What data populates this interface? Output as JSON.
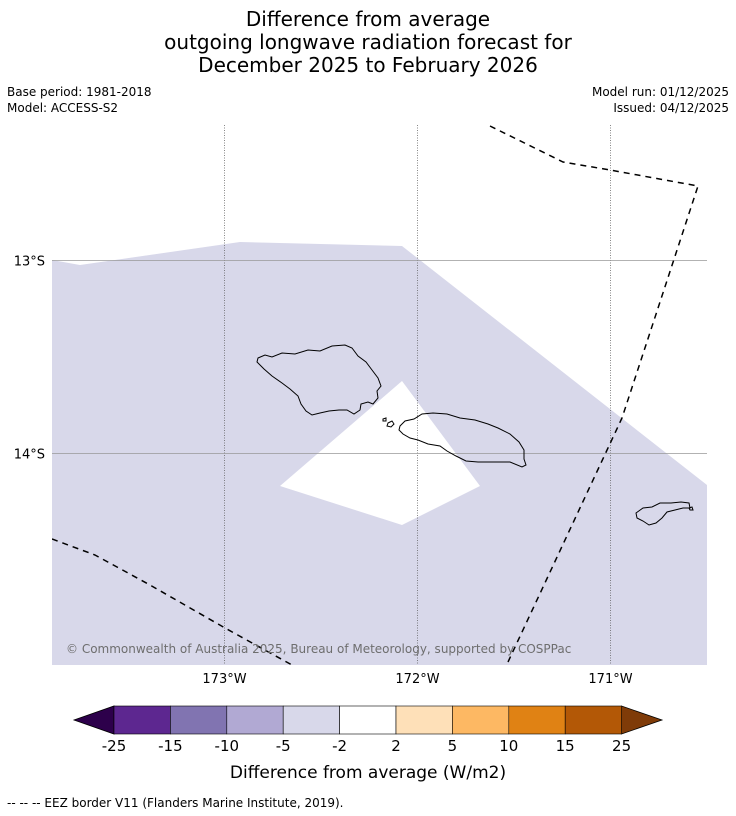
{
  "title": {
    "line1": "Difference from average",
    "line2": "outgoing longwave radiation forecast for",
    "line3": "December 2025 to February 2026"
  },
  "meta": {
    "base_period": "Base period: 1981-2018",
    "model": "Model: ACCESS-S2",
    "model_run": "Model run: 01/12/2025",
    "issued": "Issued: 04/12/2025"
  },
  "map": {
    "lon_range": [
      -173.9,
      -170.5
    ],
    "lat_range": [
      -15.1,
      -12.3
    ],
    "lat_labels": [
      {
        "lat": -13,
        "text": "13°S"
      },
      {
        "lat": -14,
        "text": "14°S"
      }
    ],
    "lon_labels": [
      {
        "lon": -173,
        "text": "173°W"
      },
      {
        "lon": -172,
        "text": "172°W"
      },
      {
        "lon": -171,
        "text": "171°W"
      }
    ],
    "anomaly_category": "-5 to -2",
    "anomaly_color": "#d8d8ea",
    "neutral_color": "#ffffff",
    "copyright": "© Commonwealth of Australia 2025, Bureau of Meteorology, supported by COSPPac"
  },
  "colorbar": {
    "ticks": [
      "-25",
      "-15",
      "-10",
      "-5",
      "-2",
      "2",
      "5",
      "10",
      "15",
      "25"
    ],
    "colors": [
      "#5d2790",
      "#8174b1",
      "#b1a9d3",
      "#d8d8ea",
      "#ffffff",
      "#fee0b8",
      "#fdb863",
      "#e08214",
      "#b35806"
    ],
    "under_color": "#2d004b",
    "over_color": "#7f3b08",
    "label": "Difference from average (W/m2)"
  },
  "footnote": "--  --  -- EEZ border V11 (Flanders Marine Institute, 2019)."
}
